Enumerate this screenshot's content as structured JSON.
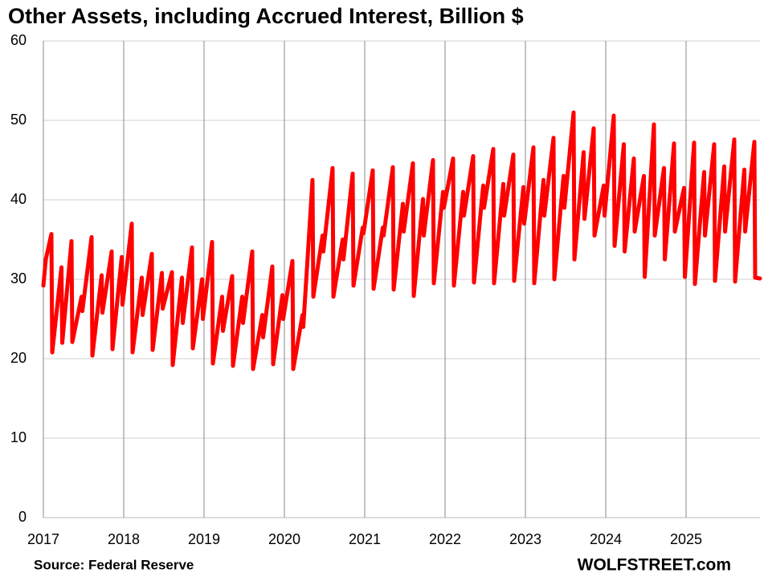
{
  "chart_data": {
    "type": "line",
    "title": "Other Assets, including Accrued Interest, Billion $",
    "source": "Source: Federal Reserve",
    "brand": "WOLFSTREET.com",
    "xlim": [
      2017,
      2025.92
    ],
    "xticks": [
      2017,
      2018,
      2019,
      2020,
      2021,
      2022,
      2023,
      2024,
      2025
    ],
    "ylim": [
      0,
      60
    ],
    "yticks": [
      0,
      10,
      20,
      30,
      40,
      50,
      60
    ],
    "grid": true,
    "series": [
      {
        "color": "#ff0000",
        "x": [
          2017,
          2017.03,
          2017.1,
          2017.11,
          2017.225,
          2017.235,
          2017.35,
          2017.36,
          2017.475,
          2017.485,
          2017.6,
          2017.61,
          2017.725,
          2017.735,
          2017.85,
          2017.86,
          2017.975,
          2017.985,
          2018.1,
          2018.11,
          2018.225,
          2018.235,
          2018.35,
          2018.36,
          2018.475,
          2018.485,
          2018.6,
          2018.61,
          2018.725,
          2018.735,
          2018.85,
          2018.86,
          2018.975,
          2018.985,
          2019.1,
          2019.11,
          2019.225,
          2019.235,
          2019.35,
          2019.36,
          2019.475,
          2019.485,
          2019.6,
          2019.61,
          2019.725,
          2019.735,
          2019.85,
          2019.86,
          2019.975,
          2019.985,
          2020.1,
          2020.11,
          2020.225,
          2020.235,
          2020.35,
          2020.36,
          2020.475,
          2020.485,
          2020.6,
          2020.61,
          2020.725,
          2020.735,
          2020.85,
          2020.86,
          2020.975,
          2020.985,
          2021.1,
          2021.11,
          2021.225,
          2021.235,
          2021.35,
          2021.36,
          2021.475,
          2021.485,
          2021.6,
          2021.61,
          2021.725,
          2021.735,
          2021.85,
          2021.86,
          2021.975,
          2021.985,
          2022.1,
          2022.11,
          2022.225,
          2022.235,
          2022.35,
          2022.36,
          2022.475,
          2022.485,
          2022.6,
          2022.61,
          2022.725,
          2022.735,
          2022.85,
          2022.86,
          2022.975,
          2022.985,
          2023.1,
          2023.11,
          2023.225,
          2023.235,
          2023.35,
          2023.36,
          2023.475,
          2023.485,
          2023.6,
          2023.61,
          2023.725,
          2023.735,
          2023.85,
          2023.86,
          2023.975,
          2023.985,
          2024.1,
          2024.11,
          2024.225,
          2024.235,
          2024.35,
          2024.36,
          2024.475,
          2024.485,
          2024.6,
          2024.61,
          2024.725,
          2024.735,
          2024.85,
          2024.86,
          2024.975,
          2024.985,
          2025.1,
          2025.11,
          2025.225,
          2025.235,
          2025.35,
          2025.36,
          2025.475,
          2025.485,
          2025.6,
          2025.61,
          2025.725,
          2025.735,
          2025.85,
          2025.86,
          2025.92
        ],
        "values": [
          29.2,
          32.5,
          35.7,
          20.8,
          31.5,
          22.0,
          34.8,
          22.1,
          27.8,
          26.0,
          35.3,
          20.4,
          30.5,
          25.8,
          33.5,
          21.2,
          32.8,
          26.8,
          37.0,
          20.8,
          30.2,
          25.5,
          33.2,
          21.1,
          30.8,
          26.3,
          30.9,
          19.2,
          30.2,
          24.5,
          34.0,
          21.3,
          30.0,
          25.0,
          34.7,
          19.4,
          27.8,
          23.5,
          30.4,
          19.1,
          27.8,
          24.5,
          33.5,
          18.7,
          25.5,
          22.7,
          31.6,
          19.3,
          28.0,
          25.0,
          32.3,
          18.7,
          25.5,
          24.0,
          42.5,
          27.8,
          35.5,
          33.5,
          44.0,
          27.8,
          35.0,
          32.5,
          43.3,
          29.2,
          36.5,
          35.8,
          43.7,
          28.8,
          36.5,
          35.5,
          44.1,
          28.7,
          39.5,
          36.0,
          44.6,
          27.9,
          40.1,
          35.5,
          45.0,
          29.5,
          41.0,
          39.0,
          45.2,
          29.2,
          41.0,
          38.0,
          45.5,
          29.6,
          41.8,
          39.0,
          46.4,
          29.5,
          42.0,
          38.0,
          45.7,
          29.8,
          41.6,
          37.0,
          46.6,
          29.5,
          42.5,
          38.0,
          47.8,
          30.0,
          43.0,
          39.0,
          51.0,
          32.5,
          46.0,
          37.6,
          49.0,
          35.5,
          41.8,
          38.0,
          50.6,
          34.2,
          47.0,
          33.5,
          45.2,
          36.0,
          43.0,
          30.3,
          49.5,
          35.5,
          44.0,
          32.5,
          47.1,
          36.0,
          41.5,
          30.3,
          47.2,
          29.4,
          43.5,
          35.5,
          47.0,
          29.8,
          44.2,
          36.0,
          47.6,
          29.7,
          43.8,
          36.0,
          47.3,
          30.2,
          30.1
        ]
      }
    ]
  }
}
